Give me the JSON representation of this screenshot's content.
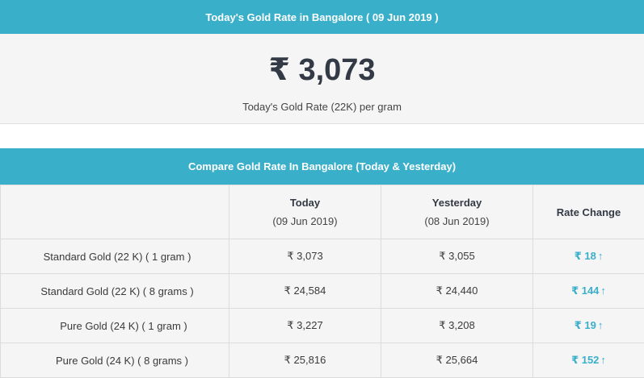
{
  "header": {
    "title": "Today's Gold Rate in Bangalore ( 09 Jun 2019 )"
  },
  "rate_panel": {
    "rate": "₹ 3,073",
    "caption": "Today's Gold Rate (22K) per gram"
  },
  "compare": {
    "title": "Compare Gold Rate In Bangalore (Today & Yesterday)",
    "columns": {
      "today": "Today",
      "today_date": "(09 Jun 2019)",
      "yesterday": "Yesterday",
      "yesterday_date": "(08 Jun 2019)",
      "change": "Rate Change"
    },
    "rows": [
      {
        "label": "Standard Gold (22 K) ( 1 gram )",
        "today": "₹ 3,073",
        "yesterday": "₹ 3,055",
        "change": "₹ 18",
        "arrow": "↑"
      },
      {
        "label": "Standard Gold (22 K) ( 8 grams )",
        "today": "₹ 24,584",
        "yesterday": "₹ 24,440",
        "change": "₹ 144",
        "arrow": "↑"
      },
      {
        "label": "Pure Gold (24 K) ( 1 gram )",
        "today": "₹ 3,227",
        "yesterday": "₹ 3,208",
        "change": "₹ 19",
        "arrow": "↑"
      },
      {
        "label": "Pure Gold (24 K) ( 8 grams )",
        "today": "₹ 25,816",
        "yesterday": "₹ 25,664",
        "change": "₹ 152",
        "arrow": "↑"
      }
    ],
    "accent_color": "#3aafca"
  }
}
